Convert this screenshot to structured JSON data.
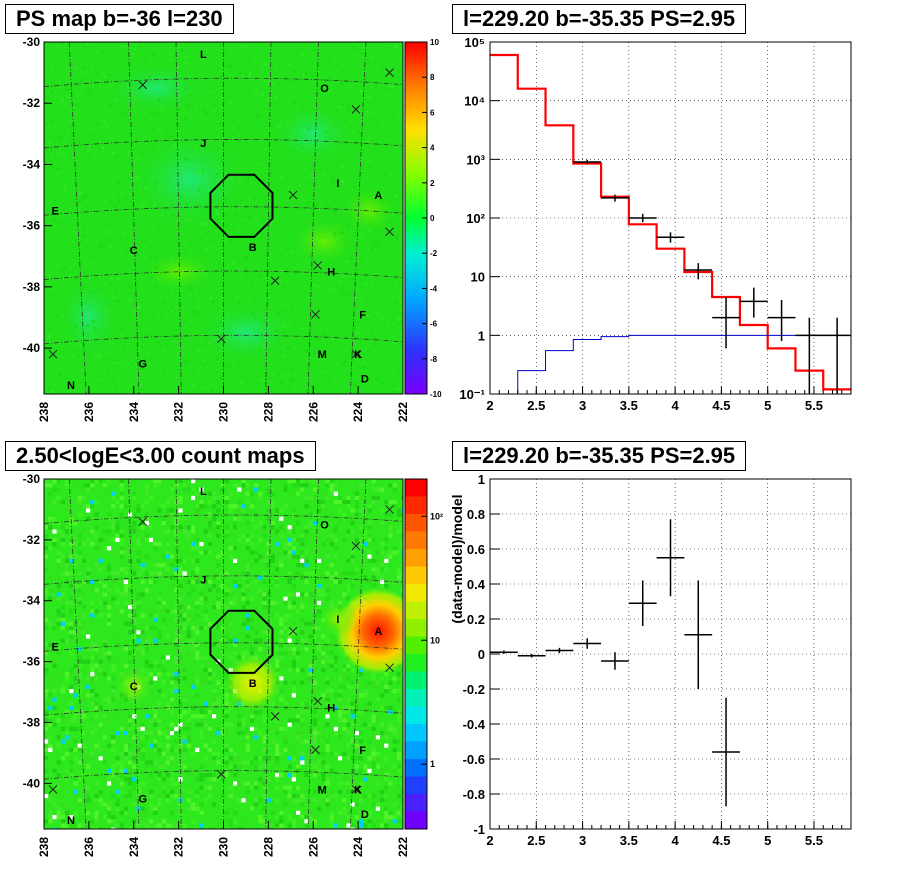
{
  "panels": [
    {
      "title": "PS map b=-36 l=230",
      "chart_data": {
        "type": "heatmap",
        "xlim": [
          238,
          222
        ],
        "ylim": [
          -41.5,
          -30
        ],
        "xticks": [
          "238",
          "236",
          "234",
          "232",
          "230",
          "228",
          "226",
          "224",
          "222"
        ],
        "yticks": [
          "-30",
          "-32",
          "-34",
          "-36",
          "-38",
          "-40"
        ],
        "colorbar": {
          "scale": "linear",
          "range": [
            -10,
            10
          ],
          "ticks": [
            "10",
            "8",
            "6",
            "4",
            "2",
            "0",
            "-2",
            "-4",
            "-6",
            "-8",
            "-10"
          ]
        },
        "background": "#22e01a",
        "source_labels": [
          {
            "label": "L",
            "l": 230.9,
            "b": -30.4
          },
          {
            "label": "O",
            "l": 225.5,
            "b": -31.5
          },
          {
            "label": "J",
            "l": 230.9,
            "b": -33.3
          },
          {
            "label": "I",
            "l": 224.9,
            "b": -34.6
          },
          {
            "label": "A",
            "l": 223.1,
            "b": -35.0
          },
          {
            "label": "E",
            "l": 237.5,
            "b": -35.5
          },
          {
            "label": "B",
            "l": 228.7,
            "b": -36.7
          },
          {
            "label": "C",
            "l": 234.0,
            "b": -36.8
          },
          {
            "label": "H",
            "l": 225.2,
            "b": -37.5
          },
          {
            "label": "F",
            "l": 223.8,
            "b": -38.9
          },
          {
            "label": "M",
            "l": 225.6,
            "b": -40.2
          },
          {
            "label": "K",
            "l": 224.0,
            "b": -40.2
          },
          {
            "label": "G",
            "l": 233.6,
            "b": -40.5
          },
          {
            "label": "D",
            "l": 223.7,
            "b": -41.0
          },
          {
            "label": "N",
            "l": 236.8,
            "b": -41.2
          }
        ],
        "crosses": [
          [
            233.6,
            -31.4
          ],
          [
            224.1,
            -32.2
          ],
          [
            222.6,
            -31.0
          ],
          [
            226.9,
            -35.0
          ],
          [
            222.6,
            -36.2
          ],
          [
            225.8,
            -37.3
          ],
          [
            227.7,
            -37.8
          ],
          [
            225.9,
            -38.9
          ],
          [
            230.1,
            -39.7
          ],
          [
            237.6,
            -40.2
          ],
          [
            224.1,
            -40.2
          ]
        ],
        "circle": {
          "l": 229.2,
          "b": -35.35,
          "r": 0.6
        }
      }
    },
    {
      "title": "l=229.20 b=-35.35 PS=2.95",
      "chart_data": {
        "type": "line",
        "xlim": [
          2,
          5.9
        ],
        "ylog": true,
        "ylim": [
          0.1,
          100000
        ],
        "xticks": [
          "2",
          "2.5",
          "3",
          "3.5",
          "4",
          "4.5",
          "5",
          "5.5"
        ],
        "yticks": [
          "10⁻¹",
          "1",
          "10",
          "10²",
          "10³",
          "10⁴",
          "10⁵"
        ],
        "edges": [
          2.0,
          2.3,
          2.6,
          2.9,
          3.2,
          3.5,
          3.8,
          4.1,
          4.4,
          4.7,
          5.0,
          5.3,
          5.6,
          5.9
        ],
        "series": [
          {
            "color": "#ff0000",
            "values": [
              60000,
              16000,
              3800,
              850,
              230,
              78,
              30,
              12,
              4.5,
              1.5,
              0.6,
              0.25,
              0.12
            ]
          },
          {
            "color": "#0000cc",
            "values": [
              0.1,
              0.25,
              0.55,
              0.85,
              0.95,
              1.0,
              1.0,
              1.0,
              1.0,
              1.0,
              1.0,
              1.0,
              1.0
            ]
          }
        ],
        "points": [
          {
            "x": 3.05,
            "y": 900,
            "lo": 820,
            "hi": 980
          },
          {
            "x": 3.35,
            "y": 220,
            "lo": 190,
            "hi": 250
          },
          {
            "x": 3.65,
            "y": 100,
            "lo": 85,
            "hi": 118
          },
          {
            "x": 3.95,
            "y": 47,
            "lo": 38,
            "hi": 57
          },
          {
            "x": 4.25,
            "y": 13,
            "lo": 9,
            "hi": 17
          },
          {
            "x": 4.55,
            "y": 2.0,
            "lo": 0.6,
            "hi": 4.5
          },
          {
            "x": 4.85,
            "y": 3.8,
            "lo": 2.0,
            "hi": 6.5
          },
          {
            "x": 5.15,
            "y": 2.0,
            "lo": 0.8,
            "hi": 4.0
          },
          {
            "x": 5.45,
            "y": 1.0,
            "lo": 0.1,
            "hi": 2.0
          },
          {
            "x": 5.75,
            "y": 1.0,
            "lo": 0.1,
            "hi": 2.0
          }
        ]
      }
    },
    {
      "title": "2.50<logE<3.00 count maps",
      "chart_data": {
        "type": "heatmap",
        "xlim": [
          238,
          222
        ],
        "ylim": [
          -41.5,
          -30
        ],
        "xticks": [
          "238",
          "236",
          "234",
          "232",
          "230",
          "228",
          "226",
          "224",
          "222"
        ],
        "yticks": [
          "-30",
          "-32",
          "-34",
          "-36",
          "-38",
          "-40"
        ],
        "colorbar": {
          "scale": "log",
          "range": [
            0.3,
            200
          ],
          "ticks": [
            "10²",
            "10",
            "1"
          ]
        },
        "background": "#2ee81e",
        "hotspots": [
          {
            "label": "A",
            "l": 223.1,
            "b": -35.0,
            "color": "#ff2000",
            "r": 0.9
          },
          {
            "label": "B",
            "l": 228.7,
            "b": -36.7,
            "color": "#d8f000",
            "r": 0.6
          },
          {
            "label": "C",
            "l": 234.0,
            "b": -36.8,
            "color": "#a8f000",
            "r": 0.4
          },
          {
            "label": "I",
            "l": 224.9,
            "b": -34.6,
            "color": "#b8f000",
            "r": 0.4
          }
        ],
        "source_labels": [
          {
            "label": "L",
            "l": 230.9,
            "b": -30.4
          },
          {
            "label": "O",
            "l": 225.5,
            "b": -31.5
          },
          {
            "label": "J",
            "l": 230.9,
            "b": -33.3
          },
          {
            "label": "I",
            "l": 224.9,
            "b": -34.6
          },
          {
            "label": "A",
            "l": 223.1,
            "b": -35.0
          },
          {
            "label": "E",
            "l": 237.5,
            "b": -35.5
          },
          {
            "label": "B",
            "l": 228.7,
            "b": -36.7
          },
          {
            "label": "C",
            "l": 234.0,
            "b": -36.8
          },
          {
            "label": "H",
            "l": 225.2,
            "b": -37.5
          },
          {
            "label": "F",
            "l": 223.8,
            "b": -38.9
          },
          {
            "label": "M",
            "l": 225.6,
            "b": -40.2
          },
          {
            "label": "K",
            "l": 224.0,
            "b": -40.2
          },
          {
            "label": "G",
            "l": 233.6,
            "b": -40.5
          },
          {
            "label": "D",
            "l": 223.7,
            "b": -41.0
          },
          {
            "label": "N",
            "l": 236.8,
            "b": -41.2
          }
        ],
        "crosses": [
          [
            233.6,
            -31.4
          ],
          [
            224.1,
            -32.2
          ],
          [
            222.6,
            -31.0
          ],
          [
            226.9,
            -35.0
          ],
          [
            222.6,
            -36.2
          ],
          [
            225.8,
            -37.3
          ],
          [
            227.7,
            -37.8
          ],
          [
            225.9,
            -38.9
          ],
          [
            230.1,
            -39.7
          ],
          [
            237.6,
            -40.2
          ],
          [
            224.1,
            -40.2
          ]
        ],
        "circle": {
          "l": 229.2,
          "b": -35.35,
          "r": 0.6
        }
      }
    },
    {
      "title": "l=229.20 b=-35.35 PS=2.95",
      "chart_data": {
        "type": "scatter",
        "xlim": [
          2,
          5.9
        ],
        "ylim": [
          -1,
          1
        ],
        "ylabel": "(data-model)/model",
        "xticks": [
          "2",
          "2.5",
          "3",
          "3.5",
          "4",
          "4.5",
          "5",
          "5.5"
        ],
        "yticks": [
          "1",
          "0.8",
          "0.6",
          "0.4",
          "0.2",
          "0",
          "-0.2",
          "-0.4",
          "-0.6",
          "-0.8",
          "-1"
        ],
        "points": [
          {
            "x": 2.15,
            "y": 0.01,
            "xerr": 0.15,
            "yerr": 0.01
          },
          {
            "x": 2.45,
            "y": -0.01,
            "xerr": 0.15,
            "yerr": 0.01
          },
          {
            "x": 2.75,
            "y": 0.02,
            "xerr": 0.15,
            "yerr": 0.015
          },
          {
            "x": 3.05,
            "y": 0.06,
            "xerr": 0.15,
            "yerr": 0.03
          },
          {
            "x": 3.35,
            "y": -0.04,
            "xerr": 0.15,
            "yerr": 0.05
          },
          {
            "x": 3.65,
            "y": 0.29,
            "xerr": 0.15,
            "yerr": 0.13
          },
          {
            "x": 3.95,
            "y": 0.55,
            "xerr": 0.15,
            "yerr": 0.22
          },
          {
            "x": 4.25,
            "y": 0.11,
            "xerr": 0.15,
            "yerr": 0.31
          },
          {
            "x": 4.55,
            "y": -0.56,
            "xerr": 0.15,
            "yerr": 0.31
          }
        ]
      }
    }
  ]
}
